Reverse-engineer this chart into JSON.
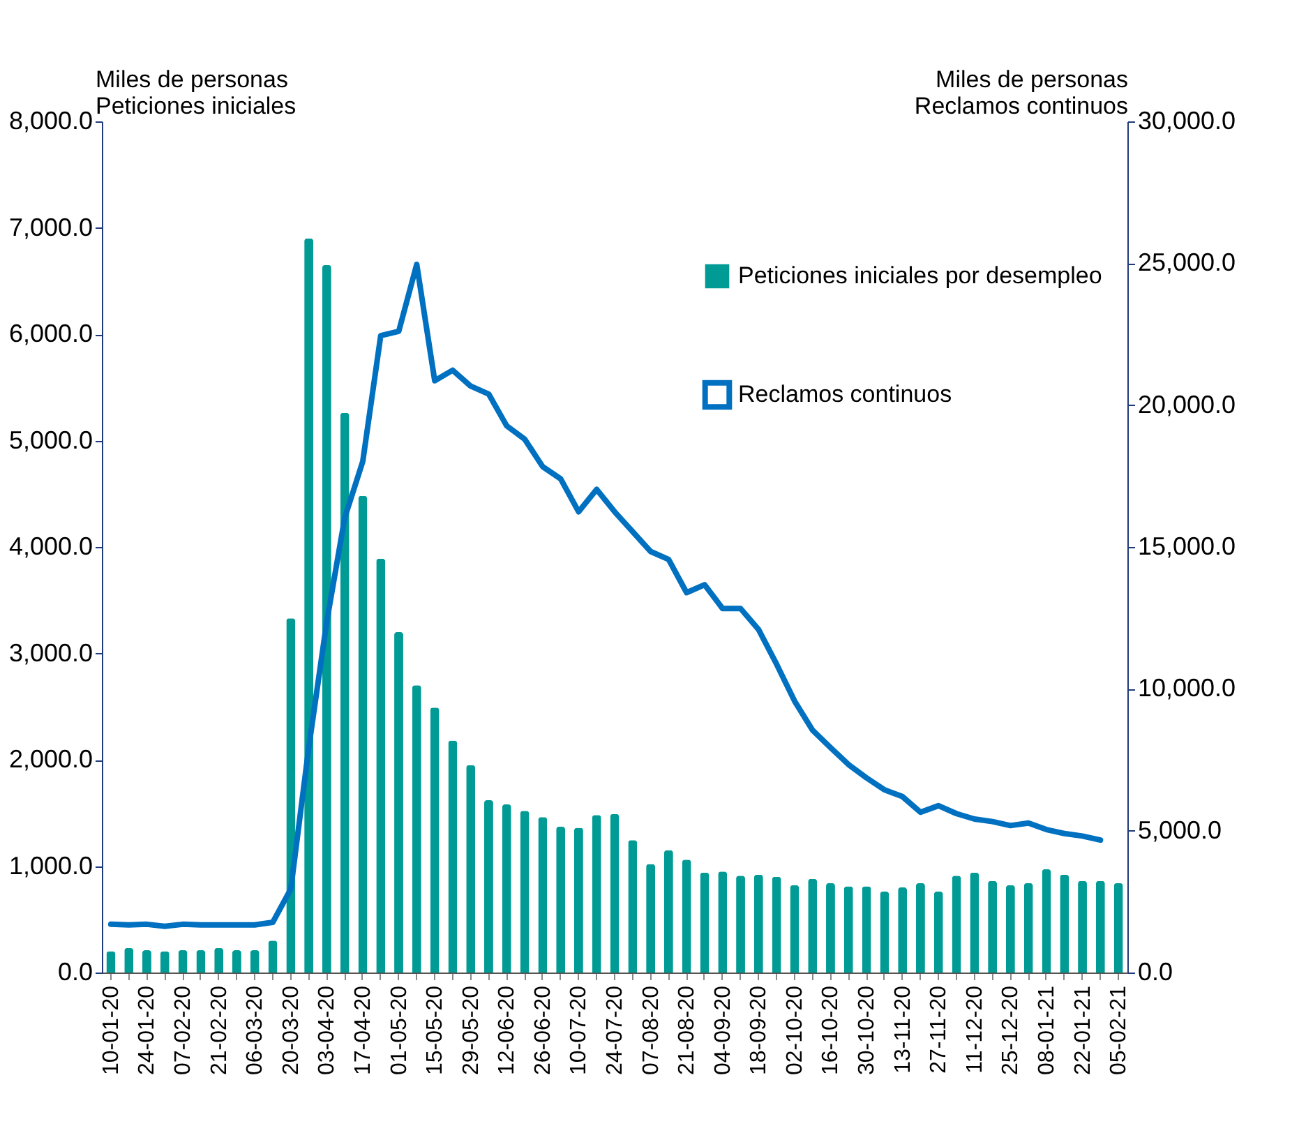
{
  "chart_data": {
    "type": "bar",
    "ylabel": "Miles de personas\nPeticiones iniciales",
    "y2label": "Miles de personas\nReclamos continuos",
    "categories": [
      "10-01-20",
      null,
      "24-01-20",
      null,
      "07-02-20",
      null,
      "21-02-20",
      null,
      "06-03-20",
      null,
      "20-03-20",
      null,
      "03-04-20",
      null,
      "17-04-20",
      null,
      "01-05-20",
      null,
      "15-05-20",
      null,
      "29-05-20",
      null,
      "12-06-20",
      null,
      "26-06-20",
      null,
      "10-07-20",
      null,
      "24-07-20",
      null,
      "07-08-20",
      null,
      "21-08-20",
      null,
      "04-09-20",
      null,
      "18-09-20",
      null,
      "02-10-20",
      null,
      "16-10-20",
      null,
      "30-10-20",
      null,
      "13-11-20",
      null,
      "27-11-20",
      null,
      "11-12-20",
      null,
      "25-12-20",
      null,
      "08-01-21",
      null,
      "22-01-21",
      null,
      "05-02-21"
    ],
    "series": [
      {
        "name": "Peticiones iniciales por desempleo",
        "color": "#009b95",
        "values": [
          200,
          230,
          210,
          200,
          210,
          210,
          230,
          210,
          210,
          300,
          3330,
          6900,
          6650,
          5260,
          4480,
          3890,
          3200,
          2700,
          2490,
          2180,
          1950,
          1620,
          1580,
          1520,
          1460,
          1370,
          1360,
          1480,
          1490,
          1245,
          1020,
          1150,
          1060,
          940,
          950,
          910,
          920,
          900,
          820,
          880,
          840,
          810,
          810,
          760,
          800,
          840,
          760,
          910,
          940,
          860,
          820,
          840,
          970,
          920,
          860,
          860,
          840
        ]
      },
      {
        "name": "Reclamos continuos",
        "type": "line",
        "axis": "y2",
        "color": "#0070c0",
        "values": [
          1700,
          1680,
          1700,
          1630,
          1700,
          1680,
          1680,
          1680,
          1680,
          1770,
          2940,
          7930,
          12370,
          16030,
          18010,
          22450,
          22600,
          24960,
          20860,
          21230,
          20670,
          20390,
          19270,
          18800,
          17830,
          17400,
          16240,
          17030,
          16240,
          15540,
          14840,
          14560,
          13390,
          13670,
          12830,
          12830,
          12090,
          10870,
          9570,
          8540,
          7930,
          7330,
          6860,
          6440,
          6200,
          5650,
          5880,
          5600,
          5410,
          5320,
          5180,
          5270,
          5040,
          4900,
          4810,
          4670,
          null
        ]
      }
    ],
    "ylim": [
      0,
      8000
    ],
    "yticks": [
      {
        "value": 0,
        "label": "0.0"
      },
      {
        "value": 1000,
        "label": "1,000.0"
      },
      {
        "value": 2000,
        "label": "2,000.0"
      },
      {
        "value": 3000,
        "label": "3,000.0"
      },
      {
        "value": 4000,
        "label": "4,000.0"
      },
      {
        "value": 5000,
        "label": "5,000.0"
      },
      {
        "value": 6000,
        "label": "6,000.0"
      },
      {
        "value": 7000,
        "label": "7,000.0"
      },
      {
        "value": 8000,
        "label": "8,000.0"
      }
    ],
    "y2lim": [
      0,
      30000
    ],
    "y2ticks": [
      {
        "value": 0,
        "label": "0.0"
      },
      {
        "value": 5000,
        "label": "5,000.0"
      },
      {
        "value": 10000,
        "label": "10,000.0"
      },
      {
        "value": 15000,
        "label": "15,000.0"
      },
      {
        "value": 20000,
        "label": "20,000.0"
      },
      {
        "value": 25000,
        "label": "25,000.0"
      },
      {
        "value": 30000,
        "label": "30,000.0"
      }
    ],
    "grid": false,
    "legend": "top right"
  }
}
